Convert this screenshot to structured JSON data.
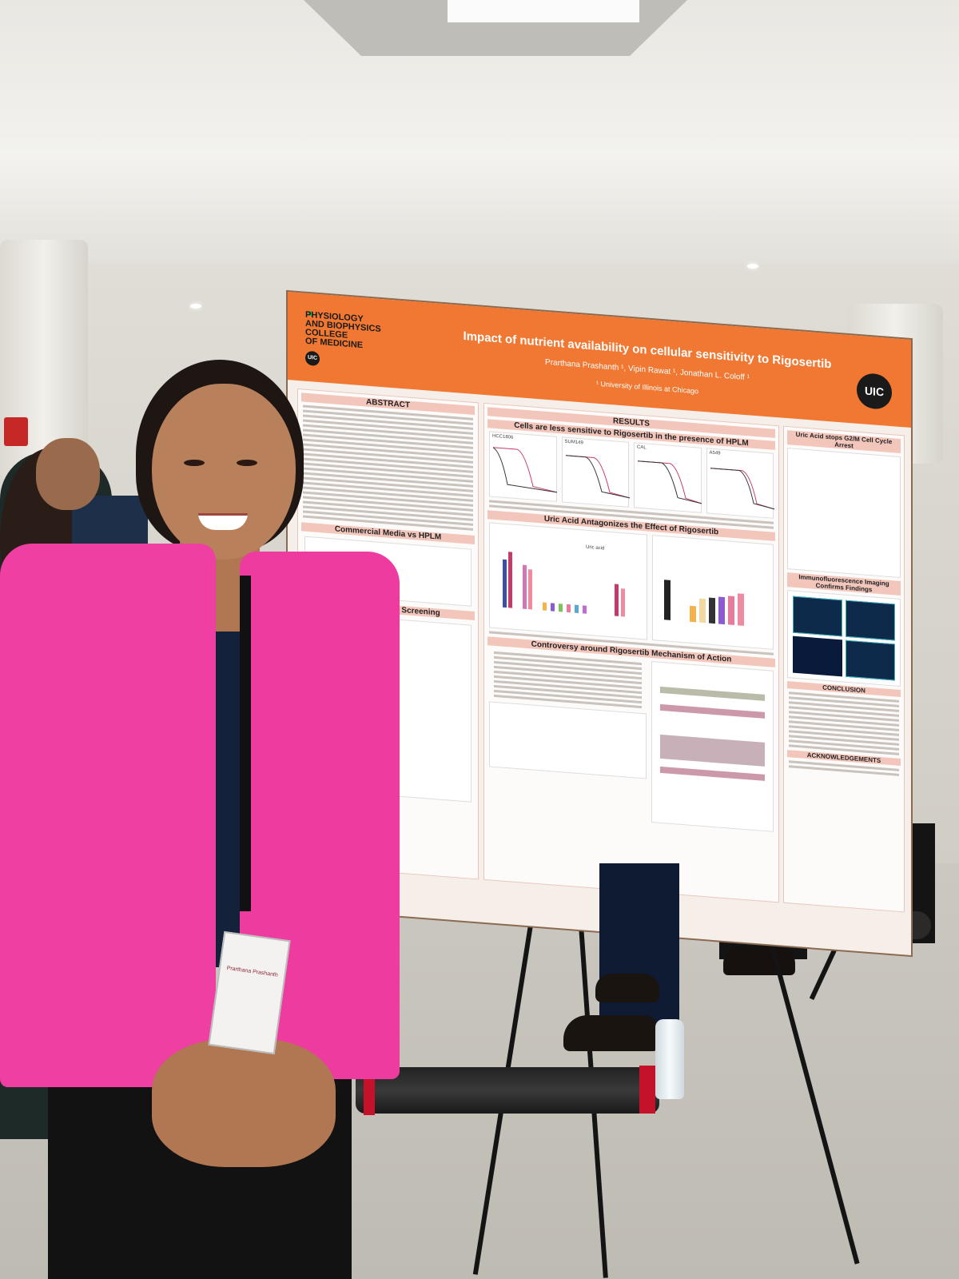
{
  "poster": {
    "department": "PHYSIOLOGY\nAND BIOPHYSICS\nCOLLEGE\nOF MEDICINE",
    "title": "Impact of nutrient availability on cellular sensitivity to Rigosertib",
    "authors": "Prarthana Prashanth ¹, Vipin Rawat ¹, Jonathan L. Coloff ¹",
    "affiliation": "¹ University of Illinois at Chicago",
    "logo_text": "UIC",
    "sections": {
      "abstract": "ABSTRACT",
      "commercial_media": "Commercial Media vs HPLM",
      "drug_screening": "throughput Drug Screening",
      "results": "RESULTS",
      "results_sub1": "Cells are less sensitive to Rigosertib in the presence of HPLM",
      "results_sub2": "Uric Acid Antagonizes the Effect of Rigosertib",
      "results_sub3": "Controversy around Rigosertib Mechanism of Action",
      "uric_acid_arrest": "Uric Acid stops G2/M Cell Cycle Arrest",
      "immuno": "Immunofluorescence Imaging Confirms Findings",
      "conclusion": "CONCLUSION",
      "ack": "ACKNOWLEDGEMENTS"
    },
    "figure_labels": {
      "a": "HCC1806",
      "b": "SUM149",
      "c": "CAL",
      "d": "A549",
      "uric": "Uric acid"
    },
    "logo_small": "UIC"
  },
  "badge": {
    "name": "Prarthana Prashanth"
  },
  "colors": {
    "poster_orange": "#f07832",
    "blazer_pink": "#ef3fa3",
    "section_pink": "#f3c6bc"
  }
}
